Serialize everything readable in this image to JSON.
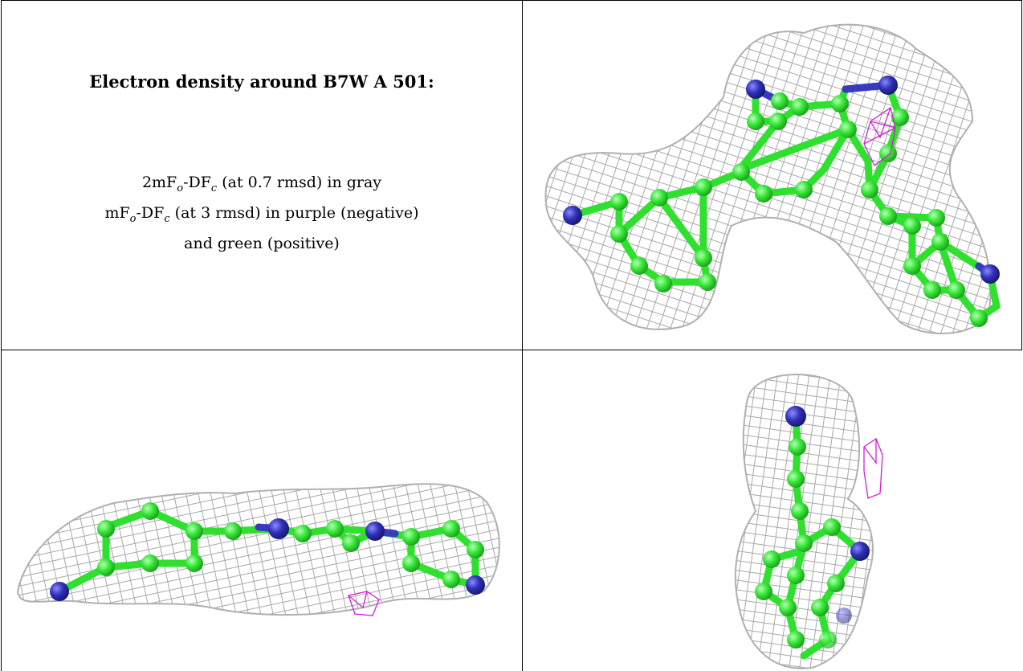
{
  "caption": {
    "title": "Electron density around B7W A 501:",
    "line1": {
      "pre": "2mF",
      "sub1": "o",
      "mid": "-DF",
      "sub2": "c",
      "post": " (at 0.7 rmsd) in gray"
    },
    "line2": {
      "pre": "mF",
      "sub1": "o",
      "mid": "-DF",
      "sub2": "c",
      "post": " (at 3 rmsd) in purple (negative)"
    },
    "line3": "and green (positive)"
  },
  "colors": {
    "density_2fofc": "#a9a9a9",
    "density_negative": "#d61fd6",
    "density_positive": "#2fe02f",
    "carbon": "#36e636",
    "nitrogen": "#3030b8"
  },
  "views": [
    {
      "id": "top-right",
      "icon": "molecule-mesh-view"
    },
    {
      "id": "bottom-left",
      "icon": "molecule-mesh-view"
    },
    {
      "id": "bottom-right",
      "icon": "molecule-mesh-view"
    }
  ]
}
